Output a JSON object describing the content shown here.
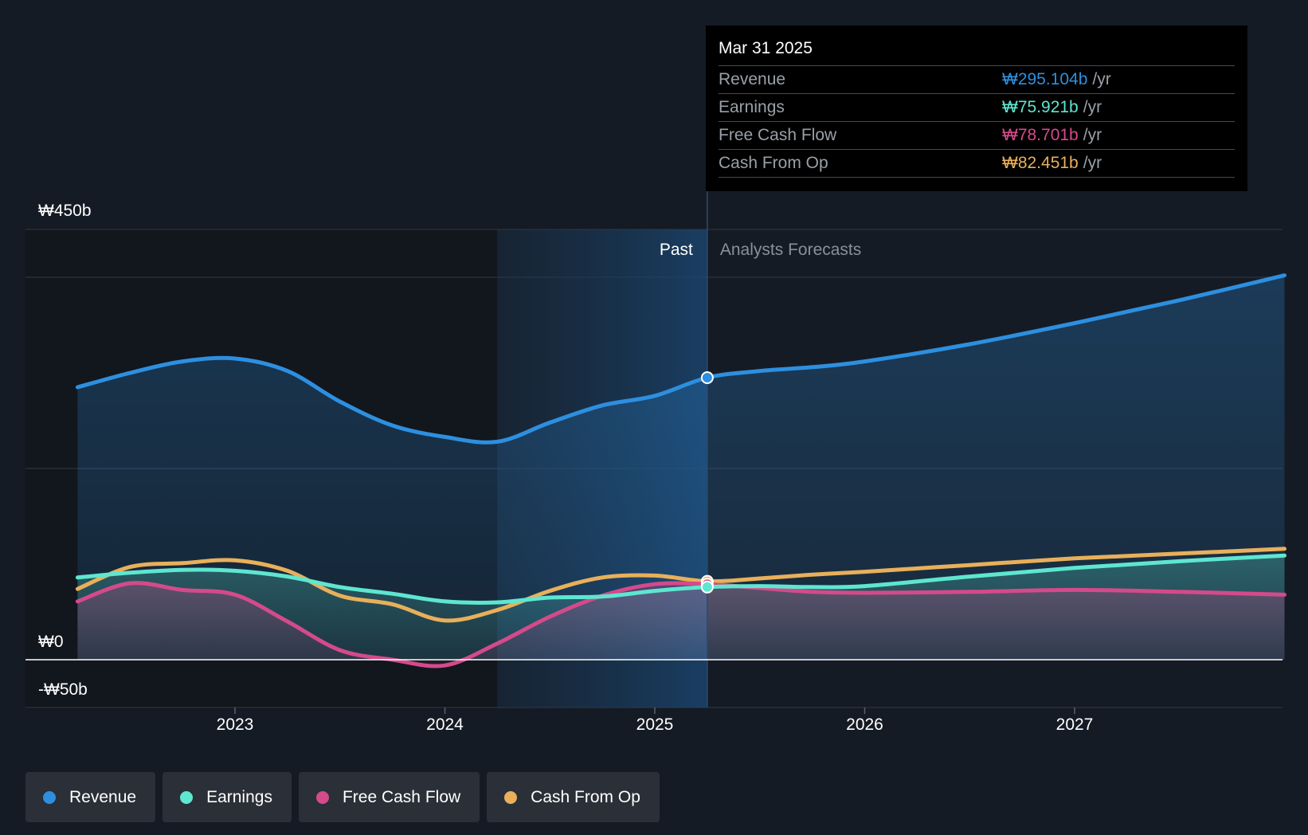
{
  "chart_data": {
    "type": "line",
    "x_axis": {
      "min": 2022.2,
      "max": 2028.0,
      "ticks": [
        "2023",
        "2024",
        "2025",
        "2026",
        "2027"
      ]
    },
    "y_axis": {
      "min": -50,
      "max": 450,
      "labels": [
        "₩450b",
        "₩0",
        "-₩50b"
      ],
      "gridlines": [
        450,
        400,
        200,
        0,
        -50
      ]
    },
    "past_label": "Past",
    "forecast_label": "Analysts Forecasts",
    "divider_x": 2025.25,
    "shade_start_x": 2024.25,
    "series": [
      {
        "name": "Revenue",
        "color": "#2d8fe0",
        "fill": true,
        "points": [
          [
            2022.25,
            285
          ],
          [
            2022.5,
            300
          ],
          [
            2022.75,
            312
          ],
          [
            2023.0,
            315
          ],
          [
            2023.25,
            302
          ],
          [
            2023.5,
            270
          ],
          [
            2023.75,
            245
          ],
          [
            2024.0,
            233
          ],
          [
            2024.25,
            228
          ],
          [
            2024.5,
            248
          ],
          [
            2024.75,
            266
          ],
          [
            2025.0,
            276
          ],
          [
            2025.25,
            295
          ],
          [
            2025.5,
            302
          ],
          [
            2025.75,
            306
          ],
          [
            2026.0,
            312
          ],
          [
            2026.5,
            330
          ],
          [
            2027.0,
            352
          ],
          [
            2027.5,
            376
          ],
          [
            2028.0,
            402
          ]
        ]
      },
      {
        "name": "Earnings",
        "color": "#5ee6d0",
        "fill": true,
        "points": [
          [
            2022.25,
            86
          ],
          [
            2022.5,
            91
          ],
          [
            2022.75,
            94
          ],
          [
            2023.0,
            93
          ],
          [
            2023.25,
            87
          ],
          [
            2023.5,
            76
          ],
          [
            2023.75,
            69
          ],
          [
            2024.0,
            61
          ],
          [
            2024.25,
            60
          ],
          [
            2024.5,
            65
          ],
          [
            2024.75,
            66
          ],
          [
            2025.0,
            72
          ],
          [
            2025.25,
            76
          ],
          [
            2025.5,
            77
          ],
          [
            2025.75,
            76
          ],
          [
            2026.0,
            77
          ],
          [
            2026.5,
            87
          ],
          [
            2027.0,
            96
          ],
          [
            2027.5,
            103
          ],
          [
            2028.0,
            109
          ]
        ]
      },
      {
        "name": "Free Cash Flow",
        "color": "#d44a8a",
        "fill": true,
        "points": [
          [
            2022.25,
            61
          ],
          [
            2022.5,
            80
          ],
          [
            2022.75,
            73
          ],
          [
            2023.0,
            68
          ],
          [
            2023.25,
            40
          ],
          [
            2023.5,
            10
          ],
          [
            2023.75,
            0
          ],
          [
            2024.0,
            -6
          ],
          [
            2024.25,
            17
          ],
          [
            2024.5,
            45
          ],
          [
            2024.75,
            67
          ],
          [
            2025.0,
            79
          ],
          [
            2025.25,
            79
          ],
          [
            2025.5,
            75
          ],
          [
            2025.75,
            71
          ],
          [
            2026.0,
            70
          ],
          [
            2026.5,
            71
          ],
          [
            2027.0,
            73
          ],
          [
            2027.5,
            71
          ],
          [
            2028.0,
            68
          ]
        ]
      },
      {
        "name": "Cash From Op",
        "color": "#e8b05a",
        "fill": false,
        "points": [
          [
            2022.25,
            74
          ],
          [
            2022.5,
            97
          ],
          [
            2022.75,
            101
          ],
          [
            2023.0,
            104
          ],
          [
            2023.25,
            93
          ],
          [
            2023.5,
            67
          ],
          [
            2023.75,
            58
          ],
          [
            2024.0,
            41
          ],
          [
            2024.25,
            52
          ],
          [
            2024.5,
            72
          ],
          [
            2024.75,
            86
          ],
          [
            2025.0,
            88
          ],
          [
            2025.25,
            82
          ],
          [
            2025.5,
            85
          ],
          [
            2025.75,
            89
          ],
          [
            2026.0,
            92
          ],
          [
            2026.5,
            99
          ],
          [
            2027.0,
            106
          ],
          [
            2027.5,
            111
          ],
          [
            2028.0,
            116
          ]
        ]
      }
    ]
  },
  "tooltip": {
    "date": "Mar 31 2025",
    "unit": "/yr",
    "rows": [
      {
        "label": "Revenue",
        "value": "₩295.104b",
        "color": "#2d8fe0"
      },
      {
        "label": "Earnings",
        "value": "₩75.921b",
        "color": "#5ee6d0"
      },
      {
        "label": "Free Cash Flow",
        "value": "₩78.701b",
        "color": "#d44a8a"
      },
      {
        "label": "Cash From Op",
        "value": "₩82.451b",
        "color": "#e8b05a"
      }
    ]
  },
  "legend": [
    {
      "label": "Revenue",
      "color": "#2d8fe0"
    },
    {
      "label": "Earnings",
      "color": "#5ee6d0"
    },
    {
      "label": "Free Cash Flow",
      "color": "#d44a8a"
    },
    {
      "label": "Cash From Op",
      "color": "#e8b05a"
    }
  ]
}
